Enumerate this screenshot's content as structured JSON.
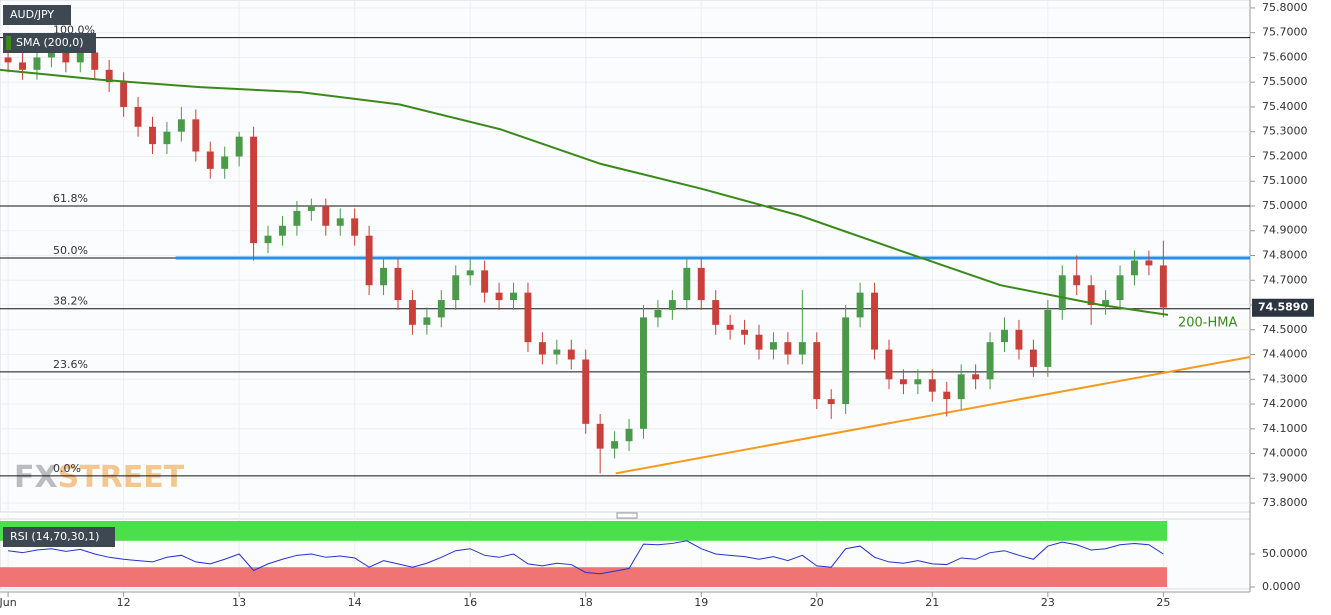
{
  "chart_data": [
    {
      "type": "candlestick",
      "title": "AUD/JPY",
      "x": [
        0,
        0.125,
        0.25,
        0.375,
        0.5,
        0.625,
        0.75,
        0.875,
        1,
        1.125,
        1.25,
        1.375,
        1.5,
        1.625,
        1.75,
        1.875,
        2,
        2.125,
        2.25,
        2.375,
        2.5,
        2.625,
        2.75,
        2.875,
        3,
        3.125,
        3.25,
        3.375,
        3.5,
        3.625,
        3.75,
        3.875,
        4,
        4.125,
        4.25,
        4.375,
        4.5,
        4.625,
        4.75,
        4.875,
        5,
        5.125,
        5.25,
        5.375,
        5.5,
        5.625,
        5.75,
        5.875,
        6,
        6.125,
        6.25,
        6.375,
        6.5,
        6.625,
        6.75,
        6.875,
        7,
        7.125,
        7.25,
        7.375,
        7.5,
        7.625,
        7.75,
        7.875,
        8,
        8.125,
        8.25,
        8.375,
        8.5,
        8.625,
        8.75,
        8.875,
        9,
        9.125,
        9.25,
        9.375,
        9.5,
        9.625,
        9.75,
        9.875,
        10
      ],
      "open": [
        75.6,
        75.58,
        75.55,
        75.6,
        75.62,
        75.58,
        75.62,
        75.55,
        75.5,
        75.4,
        75.32,
        75.25,
        75.3,
        75.35,
        75.22,
        75.15,
        75.2,
        75.28,
        74.85,
        74.88,
        74.92,
        74.98,
        75.0,
        74.92,
        74.95,
        74.88,
        74.68,
        74.75,
        74.62,
        74.52,
        74.55,
        74.62,
        74.72,
        74.74,
        74.65,
        74.62,
        74.65,
        74.45,
        74.4,
        74.42,
        74.38,
        74.12,
        74.02,
        74.05,
        74.1,
        74.55,
        74.58,
        74.62,
        74.75,
        74.62,
        74.52,
        74.5,
        74.48,
        74.42,
        74.45,
        74.4,
        74.45,
        74.22,
        74.2,
        74.55,
        74.65,
        74.42,
        74.3,
        74.28,
        74.3,
        74.25,
        74.22,
        74.32,
        74.3,
        74.45,
        74.5,
        74.42,
        74.35,
        74.58,
        74.72,
        74.68,
        74.6,
        74.62,
        74.72,
        74.78,
        74.76
      ],
      "high": [
        75.64,
        75.62,
        75.64,
        75.66,
        75.66,
        75.66,
        75.66,
        75.59,
        75.54,
        75.44,
        75.36,
        75.34,
        75.4,
        75.39,
        75.26,
        75.24,
        75.3,
        75.32,
        74.92,
        74.96,
        75.02,
        75.03,
        75.03,
        74.99,
        74.99,
        74.92,
        74.79,
        74.79,
        74.66,
        74.59,
        74.66,
        74.76,
        74.79,
        74.78,
        74.69,
        74.69,
        74.69,
        74.49,
        74.46,
        74.46,
        74.42,
        74.16,
        74.09,
        74.14,
        74.6,
        74.62,
        74.66,
        74.79,
        74.79,
        74.66,
        74.56,
        74.54,
        74.52,
        74.49,
        74.49,
        74.66,
        74.49,
        74.26,
        74.6,
        74.69,
        74.69,
        74.46,
        74.34,
        74.34,
        74.34,
        74.29,
        74.36,
        74.36,
        74.49,
        74.55,
        74.54,
        74.46,
        74.62,
        74.76,
        74.8,
        74.72,
        74.66,
        74.76,
        74.82,
        74.82,
        74.86
      ],
      "low": [
        75.54,
        75.51,
        75.51,
        75.56,
        75.54,
        75.54,
        75.51,
        75.46,
        75.36,
        75.28,
        75.21,
        75.21,
        75.26,
        75.18,
        75.11,
        75.11,
        75.16,
        74.78,
        74.81,
        74.84,
        74.88,
        74.94,
        74.88,
        74.88,
        74.84,
        74.64,
        74.64,
        74.58,
        74.48,
        74.48,
        74.51,
        74.58,
        74.68,
        74.61,
        74.58,
        74.58,
        74.41,
        74.36,
        74.36,
        74.34,
        74.08,
        73.92,
        73.98,
        74.01,
        74.06,
        74.51,
        74.54,
        74.58,
        74.58,
        74.48,
        74.46,
        74.44,
        74.38,
        74.38,
        74.36,
        74.36,
        74.18,
        74.14,
        74.16,
        74.51,
        74.38,
        74.26,
        74.24,
        74.24,
        74.21,
        74.15,
        74.18,
        74.26,
        74.26,
        74.41,
        74.38,
        74.31,
        74.31,
        74.54,
        74.64,
        74.52,
        74.56,
        74.58,
        74.68,
        74.72,
        74.55
      ],
      "close": [
        75.58,
        75.55,
        75.6,
        75.62,
        75.58,
        75.62,
        75.55,
        75.5,
        75.4,
        75.32,
        75.25,
        75.3,
        75.35,
        75.22,
        75.15,
        75.2,
        75.28,
        74.85,
        74.88,
        74.92,
        74.98,
        75.0,
        74.92,
        74.95,
        74.88,
        74.68,
        74.75,
        74.62,
        74.52,
        74.55,
        74.62,
        74.72,
        74.74,
        74.65,
        74.62,
        74.65,
        74.45,
        74.4,
        74.42,
        74.38,
        74.12,
        74.02,
        74.05,
        74.1,
        74.55,
        74.58,
        74.62,
        74.75,
        74.62,
        74.52,
        74.5,
        74.48,
        74.42,
        74.45,
        74.4,
        74.45,
        74.22,
        74.2,
        74.55,
        74.65,
        74.42,
        74.3,
        74.28,
        74.3,
        74.25,
        74.22,
        74.32,
        74.3,
        74.45,
        74.5,
        74.42,
        74.35,
        74.58,
        74.72,
        74.68,
        74.6,
        74.62,
        74.72,
        74.78,
        74.76,
        74.59
      ],
      "up_color": "#4a9a4a",
      "down_color": "#c9403a",
      "xlim": [
        -0.07,
        10.75
      ],
      "xticks": [
        {
          "value": 0,
          "label": "Jun"
        },
        {
          "value": 1,
          "label": "12"
        },
        {
          "value": 2,
          "label": "13"
        },
        {
          "value": 3,
          "label": "14"
        },
        {
          "value": 4,
          "label": "16"
        },
        {
          "value": 5,
          "label": "18"
        },
        {
          "value": 6,
          "label": "19"
        },
        {
          "value": 7,
          "label": "20"
        },
        {
          "value": 8,
          "label": "21"
        },
        {
          "value": 9,
          "label": "23"
        },
        {
          "value": 10,
          "label": "25"
        }
      ],
      "ylim": [
        73.764,
        75.832
      ],
      "yticks": [
        {
          "value": 73.8,
          "label": "73.8000"
        },
        {
          "value": 73.9,
          "label": "73.9000"
        },
        {
          "value": 74.0,
          "label": "74.0000"
        },
        {
          "value": 74.1,
          "label": "74.1000"
        },
        {
          "value": 74.2,
          "label": "74.2000"
        },
        {
          "value": 74.3,
          "label": "74.3000"
        },
        {
          "value": 74.4,
          "label": "74.4000"
        },
        {
          "value": 74.5,
          "label": "74.5000"
        },
        {
          "value": 74.6,
          "label": "74.6000"
        },
        {
          "value": 74.7,
          "label": "74.7000"
        },
        {
          "value": 74.8,
          "label": "74.8000"
        },
        {
          "value": 74.9,
          "label": "74.9000"
        },
        {
          "value": 75.0,
          "label": "75.0000"
        },
        {
          "value": 75.1,
          "label": "75.1000"
        },
        {
          "value": 75.2,
          "label": "75.2000"
        },
        {
          "value": 75.3,
          "label": "75.3000"
        },
        {
          "value": 75.4,
          "label": "75.4000"
        },
        {
          "value": 75.5,
          "label": "75.5000"
        },
        {
          "value": 75.6,
          "label": "75.6000"
        },
        {
          "value": 75.7,
          "label": "75.7000"
        },
        {
          "value": 75.8,
          "label": "75.8000"
        }
      ],
      "grid": true,
      "indicator": {
        "name": "SMA (200,0)",
        "line_label": "200-HMA",
        "color": "#3a8a1a",
        "x": [
          -0.07,
          0.8,
          1.66,
          2.53,
          3.39,
          4.26,
          5.13,
          6.0,
          6.86,
          7.72,
          8.59,
          9.46,
          10.04
        ],
        "values": [
          75.55,
          75.51,
          75.48,
          75.46,
          75.41,
          75.31,
          75.17,
          75.07,
          74.96,
          74.82,
          74.68,
          74.6,
          74.56
        ]
      },
      "fib_levels": [
        {
          "label": "100.0%",
          "value": 75.68
        },
        {
          "label": "61.8%",
          "value": 75.0
        },
        {
          "label": "50.0%",
          "value": 74.79
        },
        {
          "label": "38.2%",
          "value": 74.585
        },
        {
          "label": "23.6%",
          "value": 74.33
        },
        {
          "label": "0.0%",
          "value": 73.91
        }
      ],
      "resistance": {
        "color": "#2a8fe6",
        "x": [
          1.45,
          10.75
        ],
        "values": [
          74.79,
          74.79
        ]
      },
      "support": {
        "color": "#f59a1e",
        "x": [
          5.26,
          10.75
        ],
        "values": [
          73.92,
          74.39
        ]
      },
      "last_price": {
        "value": 74.589,
        "label": "74.5890"
      },
      "watermark": [
        "FX",
        "STREET"
      ]
    },
    {
      "type": "line",
      "title": "RSI (14,70,30,1)",
      "color": "#2233cc",
      "values": [
        55,
        52,
        56,
        58,
        54,
        57,
        50,
        45,
        42,
        40,
        38,
        45,
        48,
        38,
        35,
        42,
        50,
        25,
        35,
        42,
        48,
        50,
        45,
        47,
        44,
        30,
        40,
        35,
        30,
        36,
        45,
        55,
        58,
        48,
        45,
        50,
        35,
        32,
        36,
        34,
        22,
        20,
        24,
        28,
        65,
        64,
        66,
        70,
        58,
        50,
        48,
        46,
        42,
        46,
        40,
        48,
        32,
        30,
        58,
        62,
        45,
        38,
        36,
        40,
        35,
        34,
        44,
        42,
        52,
        55,
        48,
        42,
        62,
        68,
        64,
        56,
        58,
        64,
        66,
        64,
        50
      ],
      "overbought": 70,
      "oversold": 30,
      "overbought_color": "#4cdf4c",
      "oversold_color": "#f07474",
      "ylim": [
        0,
        100
      ],
      "yticks": [
        {
          "value": 50,
          "label": "50.0000"
        },
        {
          "value": 0,
          "label": "0.0000"
        }
      ]
    }
  ]
}
